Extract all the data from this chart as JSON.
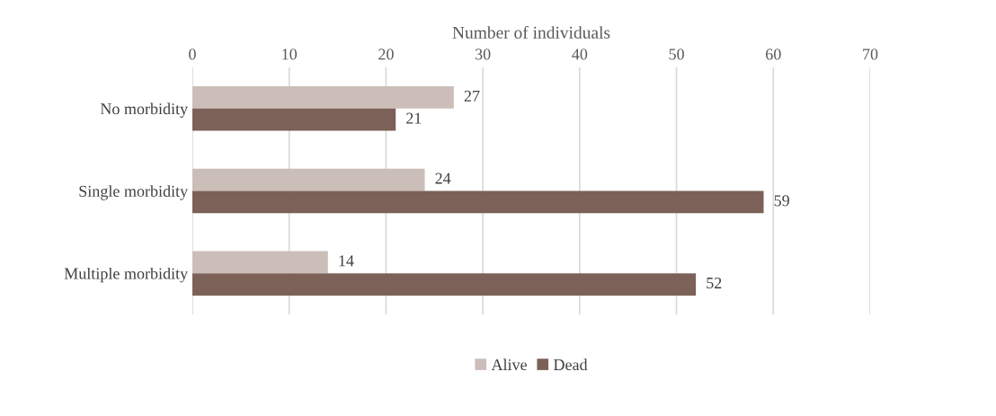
{
  "chart_data": {
    "type": "bar",
    "orientation": "horizontal",
    "xlabel": "Number of individuals",
    "categories": [
      "No morbidity",
      "Single morbidity",
      "Multiple morbidity"
    ],
    "series": [
      {
        "name": "Alive",
        "color": "#cbbdb8",
        "values": [
          27,
          24,
          14
        ]
      },
      {
        "name": "Dead",
        "color": "#7b6157",
        "values": [
          21,
          59,
          52
        ]
      }
    ],
    "xlim": [
      0,
      70
    ],
    "xticks": [
      0,
      10,
      20,
      30,
      40,
      50,
      60,
      70
    ],
    "grid": "x",
    "legend": "bottom",
    "data_labels": true
  }
}
